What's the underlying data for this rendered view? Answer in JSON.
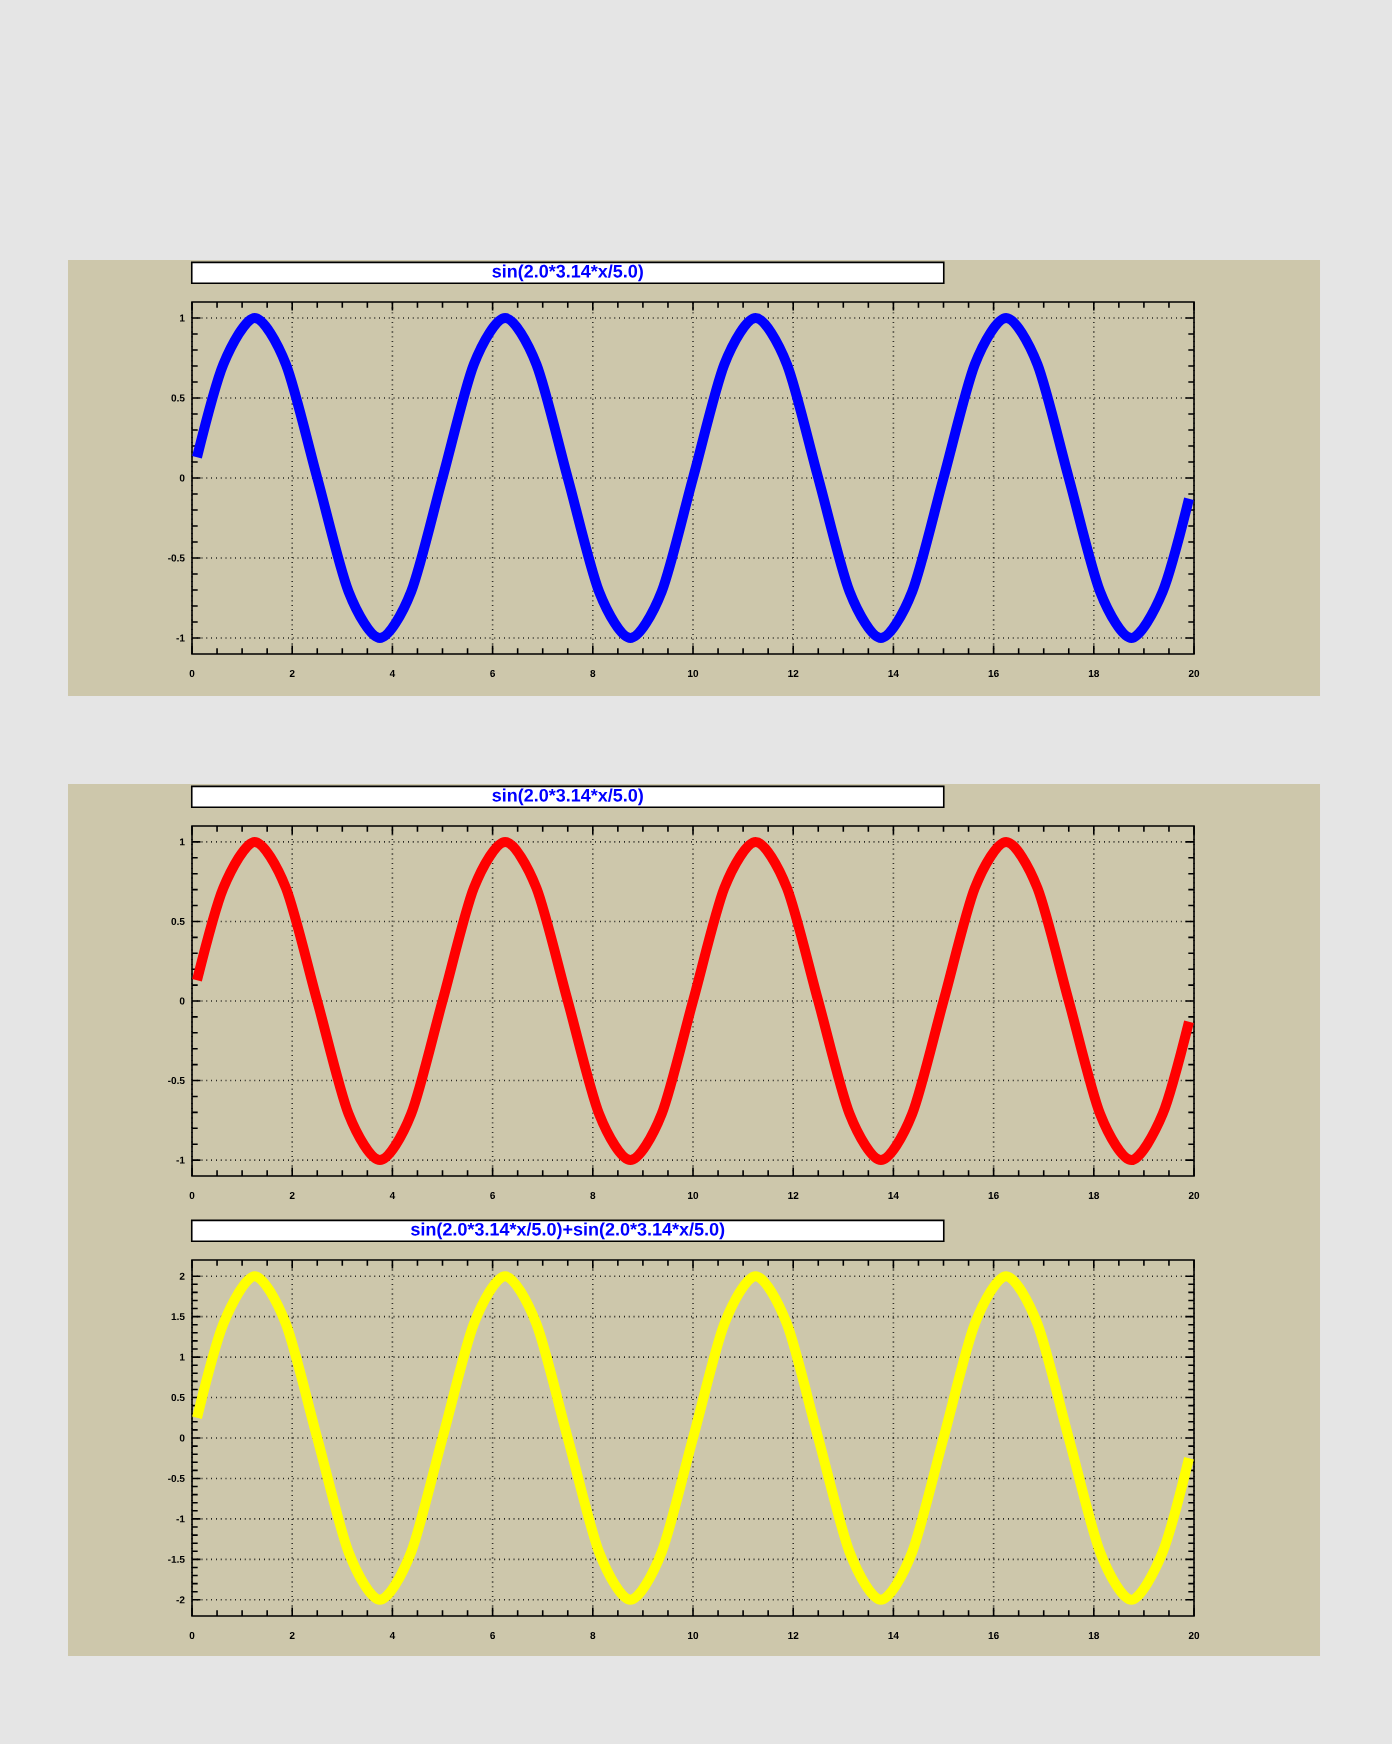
{
  "chart_data": [
    {
      "type": "line",
      "title": "sin(2.0*3.14*x/5.0)",
      "x": [
        0.1,
        0.625,
        1.25,
        1.875,
        2.5,
        3.125,
        3.75,
        4.375,
        5,
        5.625,
        6.25,
        6.875,
        7.5,
        8.125,
        8.75,
        9.375,
        10,
        10.625,
        11.25,
        11.875,
        12.5,
        13.125,
        13.75,
        14.375,
        15,
        15.625,
        16.25,
        16.875,
        17.5,
        18.125,
        18.75,
        19.375,
        19.9
      ],
      "series": [
        {
          "color": "#0000ff",
          "values": [
            0.13,
            0.71,
            1,
            0.71,
            0,
            -0.71,
            -1,
            -0.71,
            0,
            0.71,
            1,
            0.71,
            0,
            -0.71,
            -1,
            -0.71,
            0,
            0.71,
            1,
            0.71,
            0,
            -0.71,
            -1,
            -0.71,
            0,
            0.71,
            1,
            0.71,
            0,
            -0.71,
            -1,
            -0.71,
            -0.13
          ]
        }
      ],
      "xlim": [
        0,
        20
      ],
      "ylim": [
        -1.1,
        1.1
      ],
      "xticks": [
        0,
        2,
        4,
        6,
        8,
        10,
        12,
        14,
        16,
        18,
        20
      ],
      "yticks": [
        -1,
        -0.5,
        0,
        0.5,
        1
      ],
      "grid": true
    },
    {
      "type": "line",
      "title": "sin(2.0*3.14*x/5.0)",
      "x": [
        0.1,
        0.625,
        1.25,
        1.875,
        2.5,
        3.125,
        3.75,
        4.375,
        5,
        5.625,
        6.25,
        6.875,
        7.5,
        8.125,
        8.75,
        9.375,
        10,
        10.625,
        11.25,
        11.875,
        12.5,
        13.125,
        13.75,
        14.375,
        15,
        15.625,
        16.25,
        16.875,
        17.5,
        18.125,
        18.75,
        19.375,
        19.9
      ],
      "series": [
        {
          "color": "#ff0000",
          "values": [
            0.13,
            0.71,
            1,
            0.71,
            0,
            -0.71,
            -1,
            -0.71,
            0,
            0.71,
            1,
            0.71,
            0,
            -0.71,
            -1,
            -0.71,
            0,
            0.71,
            1,
            0.71,
            0,
            -0.71,
            -1,
            -0.71,
            0,
            0.71,
            1,
            0.71,
            0,
            -0.71,
            -1,
            -0.71,
            -0.13
          ]
        }
      ],
      "xlim": [
        0,
        20
      ],
      "ylim": [
        -1.1,
        1.1
      ],
      "xticks": [
        0,
        2,
        4,
        6,
        8,
        10,
        12,
        14,
        16,
        18,
        20
      ],
      "yticks": [
        -1,
        -0.5,
        0,
        0.5,
        1
      ],
      "grid": true
    },
    {
      "type": "line",
      "title": "sin(2.0*3.14*x/5.0)+sin(2.0*3.14*x/5.0)",
      "x": [
        0.1,
        0.625,
        1.25,
        1.875,
        2.5,
        3.125,
        3.75,
        4.375,
        5,
        5.625,
        6.25,
        6.875,
        7.5,
        8.125,
        8.75,
        9.375,
        10,
        10.625,
        11.25,
        11.875,
        12.5,
        13.125,
        13.75,
        14.375,
        15,
        15.625,
        16.25,
        16.875,
        17.5,
        18.125,
        18.75,
        19.375,
        19.9
      ],
      "series": [
        {
          "color": "#ffff00",
          "values": [
            0.25,
            1.41,
            2,
            1.41,
            0,
            -1.41,
            -2,
            -1.41,
            0,
            1.41,
            2,
            1.41,
            0,
            -1.41,
            -2,
            -1.41,
            0,
            1.41,
            2,
            1.41,
            0,
            -1.41,
            -2,
            -1.41,
            0,
            1.41,
            2,
            1.41,
            0,
            -1.41,
            -2,
            -1.41,
            -0.25
          ]
        }
      ],
      "xlim": [
        0,
        20
      ],
      "ylim": [
        -2.2,
        2.2
      ],
      "xticks": [
        0,
        2,
        4,
        6,
        8,
        10,
        12,
        14,
        16,
        18,
        20
      ],
      "yticks": [
        -2,
        -1.5,
        -1,
        -0.5,
        0,
        0.5,
        1,
        1.5,
        2
      ],
      "grid": true
    }
  ]
}
